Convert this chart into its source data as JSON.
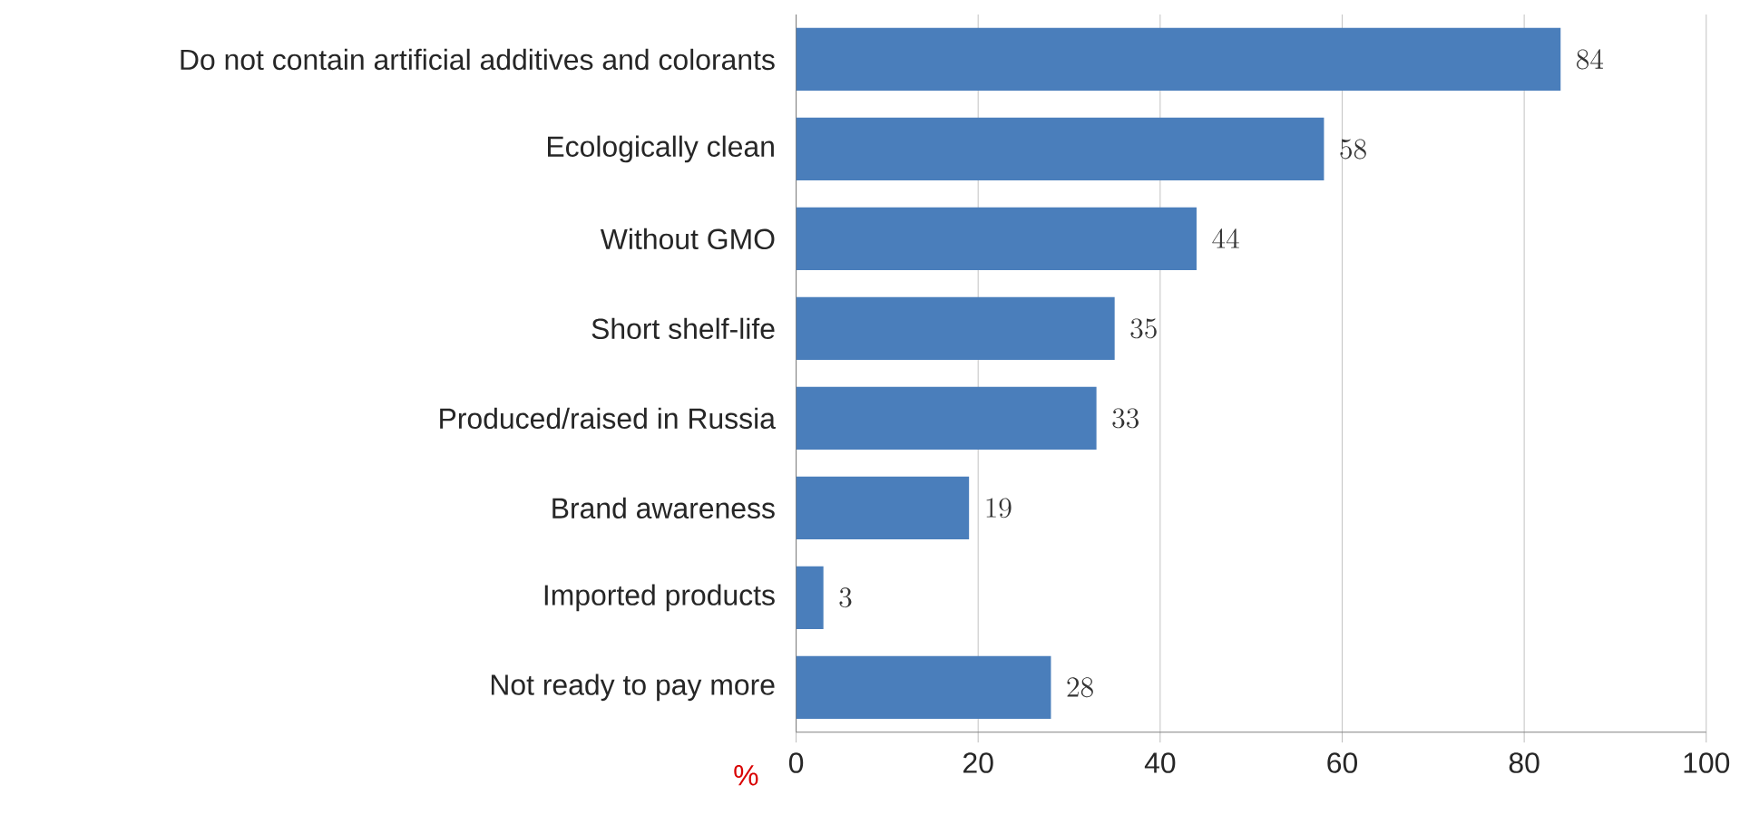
{
  "chart_data": {
    "type": "bar",
    "orientation": "horizontal",
    "xlabel": "%",
    "categories": [
      "Do not contain artificial additives and colorants",
      "Ecologically clean",
      "Without GMO",
      "Short shelf-life",
      "Produced/raised in Russia",
      "Brand awareness",
      "Imported products",
      "Not ready to pay more"
    ],
    "values": [
      84,
      58,
      44,
      35,
      33,
      19,
      3,
      28
    ],
    "color": "#4a7ebb",
    "xlim": [
      0,
      100
    ],
    "xticks": [
      0,
      20,
      40,
      60,
      80,
      100
    ],
    "grid": "x",
    "data_labels": true
  }
}
